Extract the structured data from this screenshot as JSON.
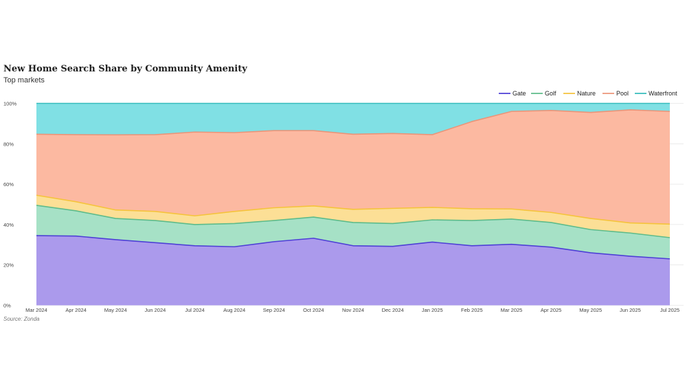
{
  "chart_data": {
    "type": "area",
    "stacked": true,
    "normalized": true,
    "title": "New Home Search Share by Community Amenity",
    "subtitle": "Top markets",
    "source": "Source: Zonda",
    "x": [
      "Mar 2024",
      "Apr 2024",
      "May 2024",
      "Jun 2024",
      "Jul 2024",
      "Aug 2024",
      "Sep 2024",
      "Oct 2024",
      "Nov 2024",
      "Dec 2024",
      "Jan 2025",
      "Feb 2025",
      "Mar 2025",
      "Apr 2025",
      "May 2025",
      "Jun 2025",
      "Jul 2025"
    ],
    "y_ticks": [
      "0%",
      "20%",
      "40%",
      "60%",
      "80%",
      "100%"
    ],
    "ylim": [
      0,
      100
    ],
    "legend_position": "top-right",
    "grid": true,
    "series": [
      {
        "name": "Gate",
        "line_color": "#4d3fd6",
        "fill_color": "#ab9aec",
        "values": [
          34.5,
          34.3,
          32.5,
          31,
          29.5,
          29,
          31.5,
          33.2,
          29.5,
          29.2,
          31.3,
          29.5,
          30.2,
          28.8,
          26,
          24.3,
          23
        ]
      },
      {
        "name": "Golf",
        "line_color": "#5dbb8a",
        "fill_color": "#a6e1c6",
        "values": [
          15,
          12.5,
          10.5,
          11,
          10.5,
          11.5,
          10.5,
          10.5,
          11.5,
          11.3,
          11,
          12.5,
          12.5,
          12.2,
          11.5,
          11.5,
          10.5
        ]
      },
      {
        "name": "Nature",
        "line_color": "#f5c33b",
        "fill_color": "#fcdf96",
        "values": [
          5,
          4.5,
          4.2,
          4.5,
          4.3,
          6,
          6.3,
          5.5,
          6.5,
          7.5,
          6.2,
          5.8,
          5,
          5,
          5.5,
          5,
          6.7
        ]
      },
      {
        "name": "Pool",
        "line_color": "#eb9478",
        "fill_color": "#fcb9a1",
        "values": [
          30.2,
          33.2,
          37.2,
          38,
          41.5,
          39,
          38.2,
          37.3,
          37.2,
          37.1,
          36,
          43.2,
          48.3,
          50.5,
          52.5,
          56,
          55.8
        ]
      },
      {
        "name": "Waterfront",
        "line_color": "#36bcbc",
        "fill_color": "#80e0e4",
        "values": [
          15.3,
          15.5,
          15.6,
          15.5,
          14.2,
          14.5,
          13.5,
          13.5,
          15.3,
          14.9,
          15.5,
          9,
          4,
          3.5,
          4.5,
          3.2,
          4
        ]
      }
    ]
  }
}
